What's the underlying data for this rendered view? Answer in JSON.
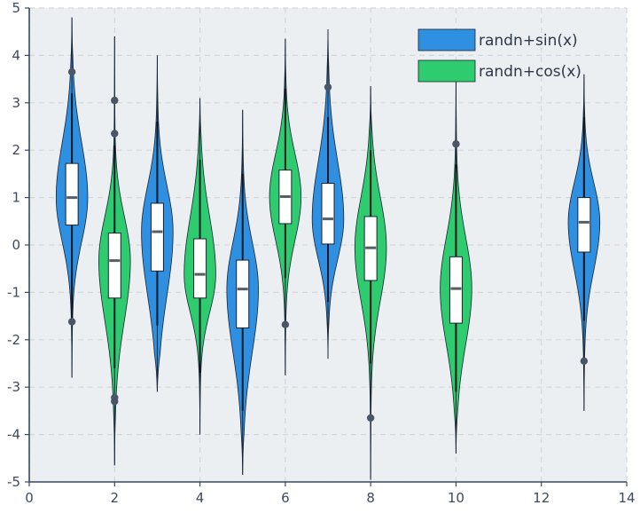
{
  "chart_data": {
    "type": "violin",
    "title": "",
    "xlabel": "",
    "ylabel": "",
    "xlim": [
      0,
      14
    ],
    "ylim": [
      -5,
      5
    ],
    "xticks": [
      0,
      2,
      4,
      6,
      8,
      10,
      12,
      14
    ],
    "yticks": [
      -5,
      -4,
      -3,
      -2,
      -1,
      0,
      1,
      2,
      3,
      4,
      5
    ],
    "grid": true,
    "legend_position": "top-right",
    "colors": {
      "plot_background": "#eceff1",
      "grid": "#d3d7da",
      "axis": "#3d4a5c",
      "outlier": "#4a5568"
    },
    "series": [
      {
        "name": "randn+sin(x)",
        "color": "#2f8fe0",
        "violins": [
          {
            "x": 1,
            "min": -2.8,
            "max": 4.8,
            "q1": 0.42,
            "median": 1.0,
            "q3": 1.72,
            "whisker_low": -1.55,
            "whisker_high": 3.2,
            "outliers": [
              3.65,
              -1.62
            ]
          },
          {
            "x": 3,
            "min": -3.1,
            "max": 4.0,
            "q1": -0.55,
            "median": 0.28,
            "q3": 0.88,
            "whisker_low": -1.7,
            "whisker_high": 2.6,
            "outliers": []
          },
          {
            "x": 5,
            "min": -4.85,
            "max": 2.85,
            "q1": -1.75,
            "median": -0.93,
            "q3": -0.32,
            "whisker_low": -3.5,
            "whisker_high": 1.5,
            "outliers": []
          },
          {
            "x": 7,
            "min": -2.4,
            "max": 4.55,
            "q1": 0.02,
            "median": 0.55,
            "q3": 1.3,
            "whisker_low": -1.2,
            "whisker_high": 2.7,
            "outliers": [
              3.33
            ]
          },
          {
            "x": 13,
            "min": -3.5,
            "max": 3.6,
            "q1": -0.15,
            "median": 0.48,
            "q3": 1.0,
            "whisker_low": -1.6,
            "whisker_high": 2.7,
            "outliers": [
              -2.45
            ]
          }
        ]
      },
      {
        "name": "randn+cos(x)",
        "color": "#2ecc6f",
        "violins": [
          {
            "x": 2,
            "min": -4.65,
            "max": 4.4,
            "q1": -1.12,
            "median": -0.33,
            "q3": 0.25,
            "whisker_low": -2.6,
            "whisker_high": 2.1,
            "outliers": [
              3.05,
              2.35,
              -3.22,
              -3.3
            ]
          },
          {
            "x": 4,
            "min": -4.0,
            "max": 3.1,
            "q1": -1.12,
            "median": -0.62,
            "q3": 0.13,
            "whisker_low": -2.7,
            "whisker_high": 1.8,
            "outliers": []
          },
          {
            "x": 6,
            "min": -2.75,
            "max": 4.35,
            "q1": 0.45,
            "median": 1.02,
            "q3": 1.58,
            "whisker_low": -0.7,
            "whisker_high": 3.3,
            "outliers": [
              -1.68
            ]
          },
          {
            "x": 8,
            "min": -4.95,
            "max": 3.35,
            "q1": -0.75,
            "median": -0.06,
            "q3": 0.6,
            "whisker_low": -2.5,
            "whisker_high": 2.0,
            "outliers": [
              -3.65
            ]
          },
          {
            "x": 10,
            "min": -4.4,
            "max": 3.5,
            "q1": -1.65,
            "median": -0.92,
            "q3": -0.25,
            "whisker_low": -3.1,
            "whisker_high": 1.7,
            "outliers": [
              2.13
            ]
          }
        ]
      }
    ]
  }
}
